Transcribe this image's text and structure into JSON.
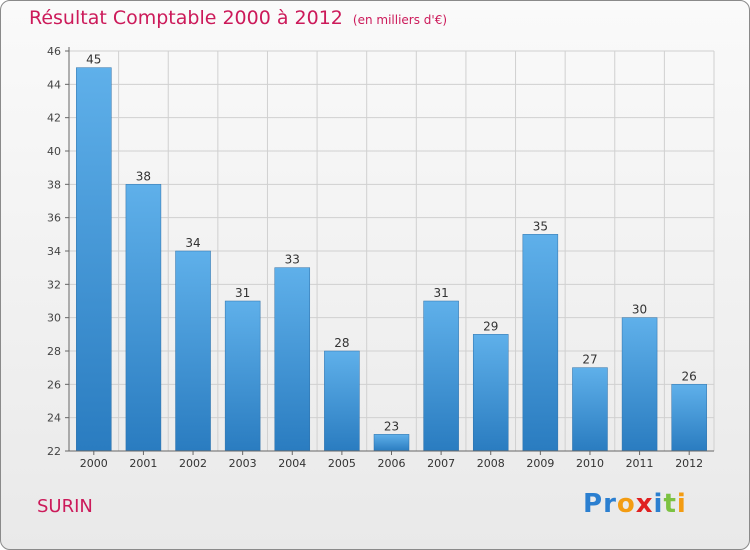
{
  "chart_data": {
    "type": "bar",
    "title": "Résultat Comptable 2000 à 2012",
    "subtitle": "(en milliers d'€)",
    "categories": [
      "2000",
      "2001",
      "2002",
      "2003",
      "2004",
      "2005",
      "2006",
      "2007",
      "2008",
      "2009",
      "2010",
      "2011",
      "2012"
    ],
    "values": [
      45,
      38,
      34,
      31,
      33,
      28,
      23,
      31,
      29,
      35,
      27,
      30,
      26
    ],
    "ylim": [
      22,
      46
    ],
    "ytick_step": 2,
    "grid": true,
    "xlabel": "",
    "ylabel": "",
    "colors": {
      "bar_top": "#5fb0ea",
      "bar_bottom": "#2a7cc0",
      "grid": "#d0d0d0"
    }
  },
  "footer": {
    "town": "SURIN",
    "logo": {
      "letters": [
        "P",
        "r",
        "o",
        "x",
        "i",
        "t",
        "i"
      ],
      "colors": [
        "#2b7fd0",
        "#2b7fd0",
        "#f39c12",
        "#e02020",
        "#2b7fd0",
        "#7cc242",
        "#f39c12"
      ]
    }
  }
}
